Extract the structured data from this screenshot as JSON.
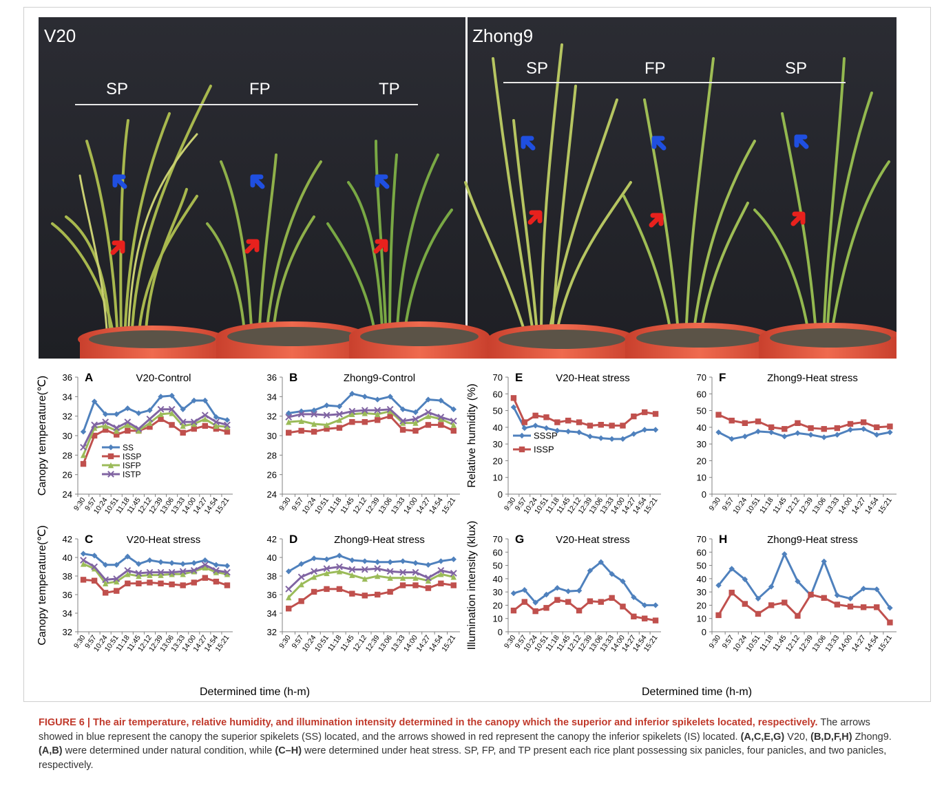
{
  "photo": {
    "left_panel": {
      "title": "V20",
      "groups": [
        "SP",
        "FP",
        "TP"
      ]
    },
    "right_panel": {
      "title": "Zhong9",
      "groups": [
        "SP",
        "FP",
        "SP"
      ]
    },
    "colors": {
      "background": "#23242a",
      "superior_arrow": "#1f4fe0",
      "inferior_arrow": "#e8211d",
      "bucket": "#e5573f"
    }
  },
  "chart_data": [
    {
      "id": "A",
      "type": "line",
      "title": "V20-Control",
      "ylabel": "Canopy temperature(℃)",
      "ylim": [
        24,
        36
      ],
      "yticks": [
        24,
        26,
        28,
        30,
        32,
        34,
        36
      ],
      "x": [
        "9:30",
        "9:57",
        "10:24",
        "10:51",
        "11:18",
        "11:45",
        "12:12",
        "12:39",
        "13:06",
        "13:33",
        "14:00",
        "14:27",
        "14:54",
        "15:21"
      ],
      "legend": [
        "SS",
        "ISSP",
        "ISFP",
        "ISTP"
      ],
      "series": [
        {
          "name": "SS",
          "color": "#4f81bd",
          "marker": "diamond",
          "values": [
            30.4,
            33.5,
            32.2,
            32.2,
            32.8,
            32.3,
            32.6,
            34.0,
            34.1,
            32.7,
            33.6,
            33.6,
            31.9,
            31.6
          ]
        },
        {
          "name": "ISSP",
          "color": "#c0504d",
          "marker": "square",
          "values": [
            27.1,
            30.0,
            30.6,
            30.1,
            30.5,
            30.5,
            30.9,
            31.7,
            31.1,
            30.3,
            30.7,
            31.0,
            30.7,
            30.4
          ]
        },
        {
          "name": "ISFP",
          "color": "#9bbb59",
          "marker": "triangle",
          "values": [
            28.0,
            30.8,
            31.0,
            30.5,
            31.1,
            30.5,
            31.3,
            32.2,
            32.3,
            31.0,
            31.2,
            31.7,
            31.0,
            30.9
          ]
        },
        {
          "name": "ISTP",
          "color": "#8064a2",
          "marker": "x",
          "values": [
            28.8,
            31.1,
            31.4,
            30.8,
            31.4,
            30.7,
            31.7,
            32.7,
            32.7,
            31.4,
            31.4,
            32.1,
            31.4,
            31.1
          ]
        }
      ]
    },
    {
      "id": "B",
      "type": "line",
      "title": "Zhong9-Control",
      "ylabel": "",
      "ylim": [
        24,
        36
      ],
      "yticks": [
        24,
        26,
        28,
        30,
        32,
        34,
        36
      ],
      "x": [
        "9:30",
        "9:57",
        "10:24",
        "10:51",
        "11:18",
        "11:45",
        "12:12",
        "12:39",
        "13:06",
        "13:33",
        "14:00",
        "14:27",
        "14:54",
        "15:21"
      ],
      "series": [
        {
          "name": "SS",
          "color": "#4f81bd",
          "marker": "diamond",
          "values": [
            32.3,
            32.5,
            32.6,
            33.1,
            33.0,
            34.3,
            34.0,
            33.7,
            34.0,
            32.7,
            32.4,
            33.7,
            33.6,
            32.7
          ]
        },
        {
          "name": "ISSP",
          "color": "#c0504d",
          "marker": "square",
          "values": [
            30.3,
            30.5,
            30.4,
            30.7,
            30.8,
            31.4,
            31.4,
            31.6,
            32.0,
            30.6,
            30.5,
            31.1,
            31.1,
            30.5
          ]
        },
        {
          "name": "ISFP",
          "color": "#9bbb59",
          "marker": "triangle",
          "values": [
            31.4,
            31.5,
            31.2,
            31.1,
            31.6,
            32.2,
            32.3,
            32.2,
            32.5,
            31.3,
            31.3,
            32.0,
            31.7,
            31.1
          ]
        },
        {
          "name": "ISTP",
          "color": "#8064a2",
          "marker": "x",
          "values": [
            31.9,
            32.2,
            32.2,
            32.1,
            32.2,
            32.5,
            32.6,
            32.6,
            32.7,
            31.5,
            31.7,
            32.4,
            31.9,
            31.5
          ]
        }
      ]
    },
    {
      "id": "C",
      "type": "line",
      "title": "V20-Heat stress",
      "ylabel": "Canopy temperature(℃)",
      "ylim": [
        32,
        42
      ],
      "yticks": [
        32,
        34,
        36,
        38,
        40,
        42
      ],
      "x": [
        "9:30",
        "9:57",
        "10:24",
        "10:51",
        "11:18",
        "11:45",
        "12:12",
        "12:39",
        "13:06",
        "13:33",
        "14:00",
        "14:27",
        "14:54",
        "15:21"
      ],
      "series": [
        {
          "name": "SS",
          "color": "#4f81bd",
          "marker": "diamond",
          "values": [
            40.4,
            40.2,
            39.2,
            39.2,
            40.1,
            39.3,
            39.7,
            39.5,
            39.4,
            39.3,
            39.4,
            39.7,
            39.2,
            39.1
          ]
        },
        {
          "name": "ISSP",
          "color": "#c0504d",
          "marker": "square",
          "values": [
            37.6,
            37.5,
            36.2,
            36.4,
            37.2,
            37.2,
            37.3,
            37.2,
            37.1,
            37.0,
            37.3,
            37.8,
            37.4,
            37.0
          ]
        },
        {
          "name": "ISFP",
          "color": "#9bbb59",
          "marker": "triangle",
          "values": [
            39.3,
            38.8,
            37.2,
            37.4,
            38.2,
            38.0,
            38.1,
            38.1,
            38.2,
            38.2,
            38.5,
            38.9,
            38.4,
            38.2
          ]
        },
        {
          "name": "ISTP",
          "color": "#8064a2",
          "marker": "x",
          "values": [
            39.7,
            39.0,
            37.6,
            37.7,
            38.6,
            38.3,
            38.4,
            38.4,
            38.4,
            38.5,
            38.6,
            39.2,
            38.6,
            38.4
          ]
        }
      ]
    },
    {
      "id": "D",
      "type": "line",
      "title": "Zhong9-Heat stress",
      "ylabel": "",
      "ylim": [
        32,
        42
      ],
      "yticks": [
        32,
        34,
        36,
        38,
        40,
        42
      ],
      "x": [
        "9:30",
        "9:57",
        "10:24",
        "10:51",
        "11:18",
        "11:45",
        "12:12",
        "12:39",
        "13:06",
        "13:33",
        "14:00",
        "14:27",
        "14:54",
        "15:21"
      ],
      "series": [
        {
          "name": "SS",
          "color": "#4f81bd",
          "marker": "diamond",
          "values": [
            38.5,
            39.3,
            39.9,
            39.8,
            40.2,
            39.7,
            39.6,
            39.5,
            39.5,
            39.6,
            39.4,
            39.2,
            39.6,
            39.8
          ]
        },
        {
          "name": "ISSP",
          "color": "#c0504d",
          "marker": "square",
          "values": [
            34.5,
            35.3,
            36.3,
            36.6,
            36.6,
            36.1,
            35.9,
            36.0,
            36.3,
            37.0,
            37.0,
            36.7,
            37.2,
            37.0
          ]
        },
        {
          "name": "ISFP",
          "color": "#9bbb59",
          "marker": "triangle",
          "values": [
            35.7,
            37.1,
            37.9,
            38.3,
            38.5,
            38.1,
            37.7,
            38.0,
            37.8,
            37.8,
            37.8,
            37.5,
            38.2,
            37.9
          ]
        },
        {
          "name": "ISTP",
          "color": "#8064a2",
          "marker": "x",
          "values": [
            36.6,
            37.9,
            38.5,
            38.8,
            39.0,
            38.7,
            38.7,
            38.8,
            38.5,
            38.4,
            38.4,
            37.8,
            38.6,
            38.3
          ]
        }
      ]
    },
    {
      "id": "E",
      "type": "line",
      "title": "V20-Heat stress",
      "ylabel": "Relative humidity (%)",
      "ylim": [
        0,
        70
      ],
      "yticks": [
        0,
        10,
        20,
        30,
        40,
        50,
        60,
        70
      ],
      "x": [
        "9:30",
        "9:57",
        "10:24",
        "10:51",
        "11:18",
        "11:45",
        "12:12",
        "12:39",
        "13:06",
        "13:33",
        "14:00",
        "14:27",
        "14:54",
        "15:21"
      ],
      "legend": [
        "SSSP",
        "ISSP"
      ],
      "series": [
        {
          "name": "SSSP",
          "color": "#4f81bd",
          "marker": "diamond",
          "values": [
            52,
            39.5,
            41,
            39.5,
            38,
            37.5,
            37,
            34.5,
            33.5,
            33,
            33,
            36,
            38.5,
            38.5
          ]
        },
        {
          "name": "ISSP",
          "color": "#c0504d",
          "marker": "square",
          "values": [
            57.5,
            43,
            47,
            46,
            43,
            44,
            43,
            41,
            41.5,
            41,
            41,
            46.5,
            49,
            48
          ]
        }
      ]
    },
    {
      "id": "F",
      "type": "line",
      "title": "Zhong9-Heat stress",
      "ylabel": "",
      "ylim": [
        0,
        70
      ],
      "yticks": [
        0,
        10,
        20,
        30,
        40,
        50,
        60,
        70
      ],
      "x": [
        "9:30",
        "9:57",
        "10:24",
        "10:51",
        "11:18",
        "11:45",
        "12:12",
        "12:39",
        "13:06",
        "13:33",
        "14:00",
        "14:27",
        "14:54",
        "15:21"
      ],
      "series": [
        {
          "name": "SSSP",
          "color": "#4f81bd",
          "marker": "diamond",
          "values": [
            37,
            33,
            34.5,
            37.5,
            37,
            34.5,
            36.5,
            35.5,
            34,
            35.5,
            38.5,
            39,
            35.5,
            37
          ]
        },
        {
          "name": "ISSP",
          "color": "#c0504d",
          "marker": "square",
          "values": [
            47.5,
            44,
            42.5,
            43.5,
            40,
            39,
            42.5,
            39.5,
            39,
            39.5,
            42,
            43,
            40,
            40.5
          ]
        }
      ]
    },
    {
      "id": "G",
      "type": "line",
      "title": "V20-Heat stress",
      "ylabel": "Illumination intensity (klux)",
      "ylim": [
        0,
        70
      ],
      "yticks": [
        0,
        10,
        20,
        30,
        40,
        50,
        60,
        70
      ],
      "x": [
        "9:30",
        "9:57",
        "10:24",
        "10:51",
        "11:18",
        "11:45",
        "12:12",
        "12:39",
        "13:06",
        "13:33",
        "14:00",
        "14:27",
        "14:54",
        "15:21"
      ],
      "series": [
        {
          "name": "SSSP",
          "color": "#4f81bd",
          "marker": "diamond",
          "values": [
            29,
            31.5,
            22,
            28,
            33,
            30.5,
            31,
            46,
            52.5,
            43.5,
            38,
            26,
            20,
            20
          ]
        },
        {
          "name": "ISSP",
          "color": "#c0504d",
          "marker": "square",
          "values": [
            16,
            22.5,
            15.5,
            18,
            24,
            22.5,
            16,
            23,
            22.5,
            25.5,
            19,
            11.5,
            10,
            8.5
          ]
        }
      ]
    },
    {
      "id": "H",
      "type": "line",
      "title": "Zhong9-Heat stress",
      "ylabel": "",
      "ylim": [
        0,
        70
      ],
      "yticks": [
        0,
        10,
        20,
        30,
        40,
        50,
        60,
        70
      ],
      "x": [
        "9:30",
        "9:57",
        "10:24",
        "10:51",
        "11:18",
        "11:45",
        "12:12",
        "12:39",
        "13:06",
        "13:33",
        "14:00",
        "14:27",
        "14:54",
        "15:21"
      ],
      "series": [
        {
          "name": "SSSP",
          "color": "#4f81bd",
          "marker": "diamond",
          "values": [
            35,
            47.5,
            39.5,
            25,
            34,
            58.5,
            38,
            27.5,
            53,
            27.5,
            25,
            32.5,
            32,
            18
          ]
        },
        {
          "name": "ISSP",
          "color": "#c0504d",
          "marker": "square",
          "values": [
            12.5,
            29.5,
            21,
            13.5,
            20,
            22,
            12,
            28,
            25.5,
            20.5,
            19,
            18.5,
            18.5,
            7
          ]
        }
      ]
    }
  ],
  "xlabels": {
    "left": "Determined time (h-m)",
    "right": "Determined time (h-m)"
  },
  "caption": {
    "title": "FIGURE 6 | The air temperature, relative humidity, and illumination intensity determined in the canopy which the superior and inferior spikelets located, respectively.",
    "p1": " The arrows showed in blue represent the canopy the superior spikelets (SS) located, and the arrows showed in red represent the canopy the inferior spikelets (IS) located. ",
    "b1": "(A,C,E,G)",
    "p2": " V20, ",
    "b2": "(B,D,F,H)",
    "p3": " Zhong9. ",
    "b3": "(A,B)",
    "p4": " were determined under natural condition, while ",
    "b4": "(C–H)",
    "p5": " were determined under heat stress. SP, FP, and TP present each rice plant possessing six panicles, four panicles, and two panicles, respectively."
  }
}
